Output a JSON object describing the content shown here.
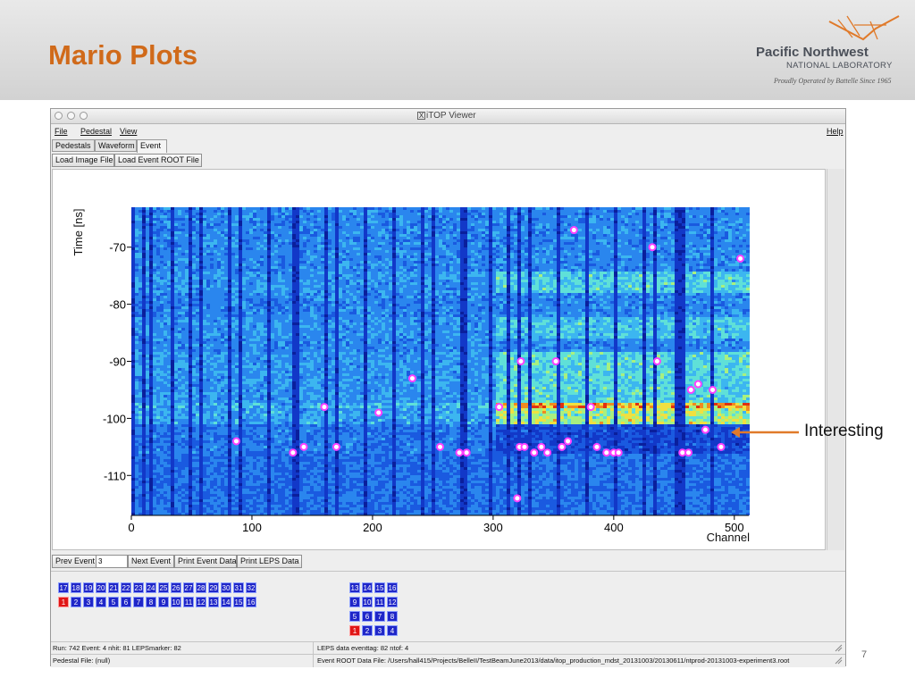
{
  "slide": {
    "title": "Mario Plots",
    "logo": {
      "line1": "Pacific Northwest",
      "line2": "NATIONAL LABORATORY",
      "line3": "Proudly Operated by Battelle Since 1965"
    },
    "annotation": "Interesting",
    "page_number": "7",
    "colors": {
      "title": "#d06a1a",
      "arrow": "#e07a2a"
    }
  },
  "window": {
    "title": "iTOP Viewer",
    "menus": [
      "File",
      "Pedestal",
      "View"
    ],
    "help_menu": "Help",
    "tabs": [
      "Pedestals",
      "Waveform",
      "Event"
    ],
    "active_tab": "Event",
    "toolbar": {
      "load_image": "Load Image File",
      "load_root": "Load Event ROOT File"
    },
    "controls": {
      "prev": "Prev Event",
      "event_value": "3",
      "next": "Next Event",
      "print_event": "Print Event Data",
      "print_leps": "Print LEPS Data"
    },
    "channel_grid": {
      "row1": [
        "17",
        "18",
        "19",
        "20",
        "21",
        "22",
        "23",
        "24",
        "25",
        "26",
        "27",
        "28",
        "29",
        "30",
        "31",
        "32"
      ],
      "row2": [
        "1",
        "2",
        "3",
        "4",
        "5",
        "6",
        "7",
        "8",
        "9",
        "10",
        "11",
        "12",
        "13",
        "14",
        "15",
        "16"
      ],
      "row2_selected": "1"
    },
    "pmt_grid": {
      "rows": [
        [
          "13",
          "14",
          "15",
          "16"
        ],
        [
          "9",
          "10",
          "11",
          "12"
        ],
        [
          "5",
          "6",
          "7",
          "8"
        ],
        [
          "1",
          "2",
          "3",
          "4"
        ]
      ],
      "selected": "1"
    },
    "status": {
      "row1_left": "Run: 742    Event: 4    nhit: 81    LEPSmarker: 82",
      "row1_right": "LEPS data    eventtag: 82    ntof: 4",
      "row2_left": "Pedestal File: (null)",
      "row2_right": "Event ROOT Data File: /Users/hall415/Projects/BelleII/TestBeamJune2013/data/itop_production_mdst_20131003/20130611/ntprod-20131003-experiment3.root"
    }
  },
  "chart_data": {
    "type": "heatmap",
    "title": "",
    "xlabel": "Channel",
    "ylabel": "Time [ns]",
    "xlim": [
      0,
      512
    ],
    "ylim": [
      -117,
      -63
    ],
    "xticks": [
      0,
      100,
      200,
      300,
      400,
      500
    ],
    "yticks": [
      -70,
      -80,
      -90,
      -100,
      -110
    ],
    "hit_color": "#ff40ff",
    "hits": [
      [
        367,
        -67
      ],
      [
        432,
        -70
      ],
      [
        505,
        -72
      ],
      [
        323,
        -90
      ],
      [
        352,
        -90
      ],
      [
        436,
        -90
      ],
      [
        233,
        -93
      ],
      [
        160,
        -98
      ],
      [
        205,
        -99
      ],
      [
        305,
        -98
      ],
      [
        381,
        -98
      ],
      [
        464,
        -95
      ],
      [
        470,
        -94
      ],
      [
        482,
        -95
      ],
      [
        476,
        -102
      ],
      [
        87,
        -104
      ],
      [
        143,
        -105
      ],
      [
        134,
        -106
      ],
      [
        170,
        -105
      ],
      [
        256,
        -105
      ],
      [
        272,
        -106
      ],
      [
        278,
        -106
      ],
      [
        322,
        -105
      ],
      [
        326,
        -105
      ],
      [
        334,
        -106
      ],
      [
        340,
        -105
      ],
      [
        345,
        -106
      ],
      [
        357,
        -105
      ],
      [
        362,
        -104
      ],
      [
        386,
        -105
      ],
      [
        394,
        -106
      ],
      [
        400,
        -106
      ],
      [
        404,
        -106
      ],
      [
        457,
        -106
      ],
      [
        462,
        -106
      ],
      [
        489,
        -105
      ],
      [
        320,
        -114
      ]
    ]
  }
}
